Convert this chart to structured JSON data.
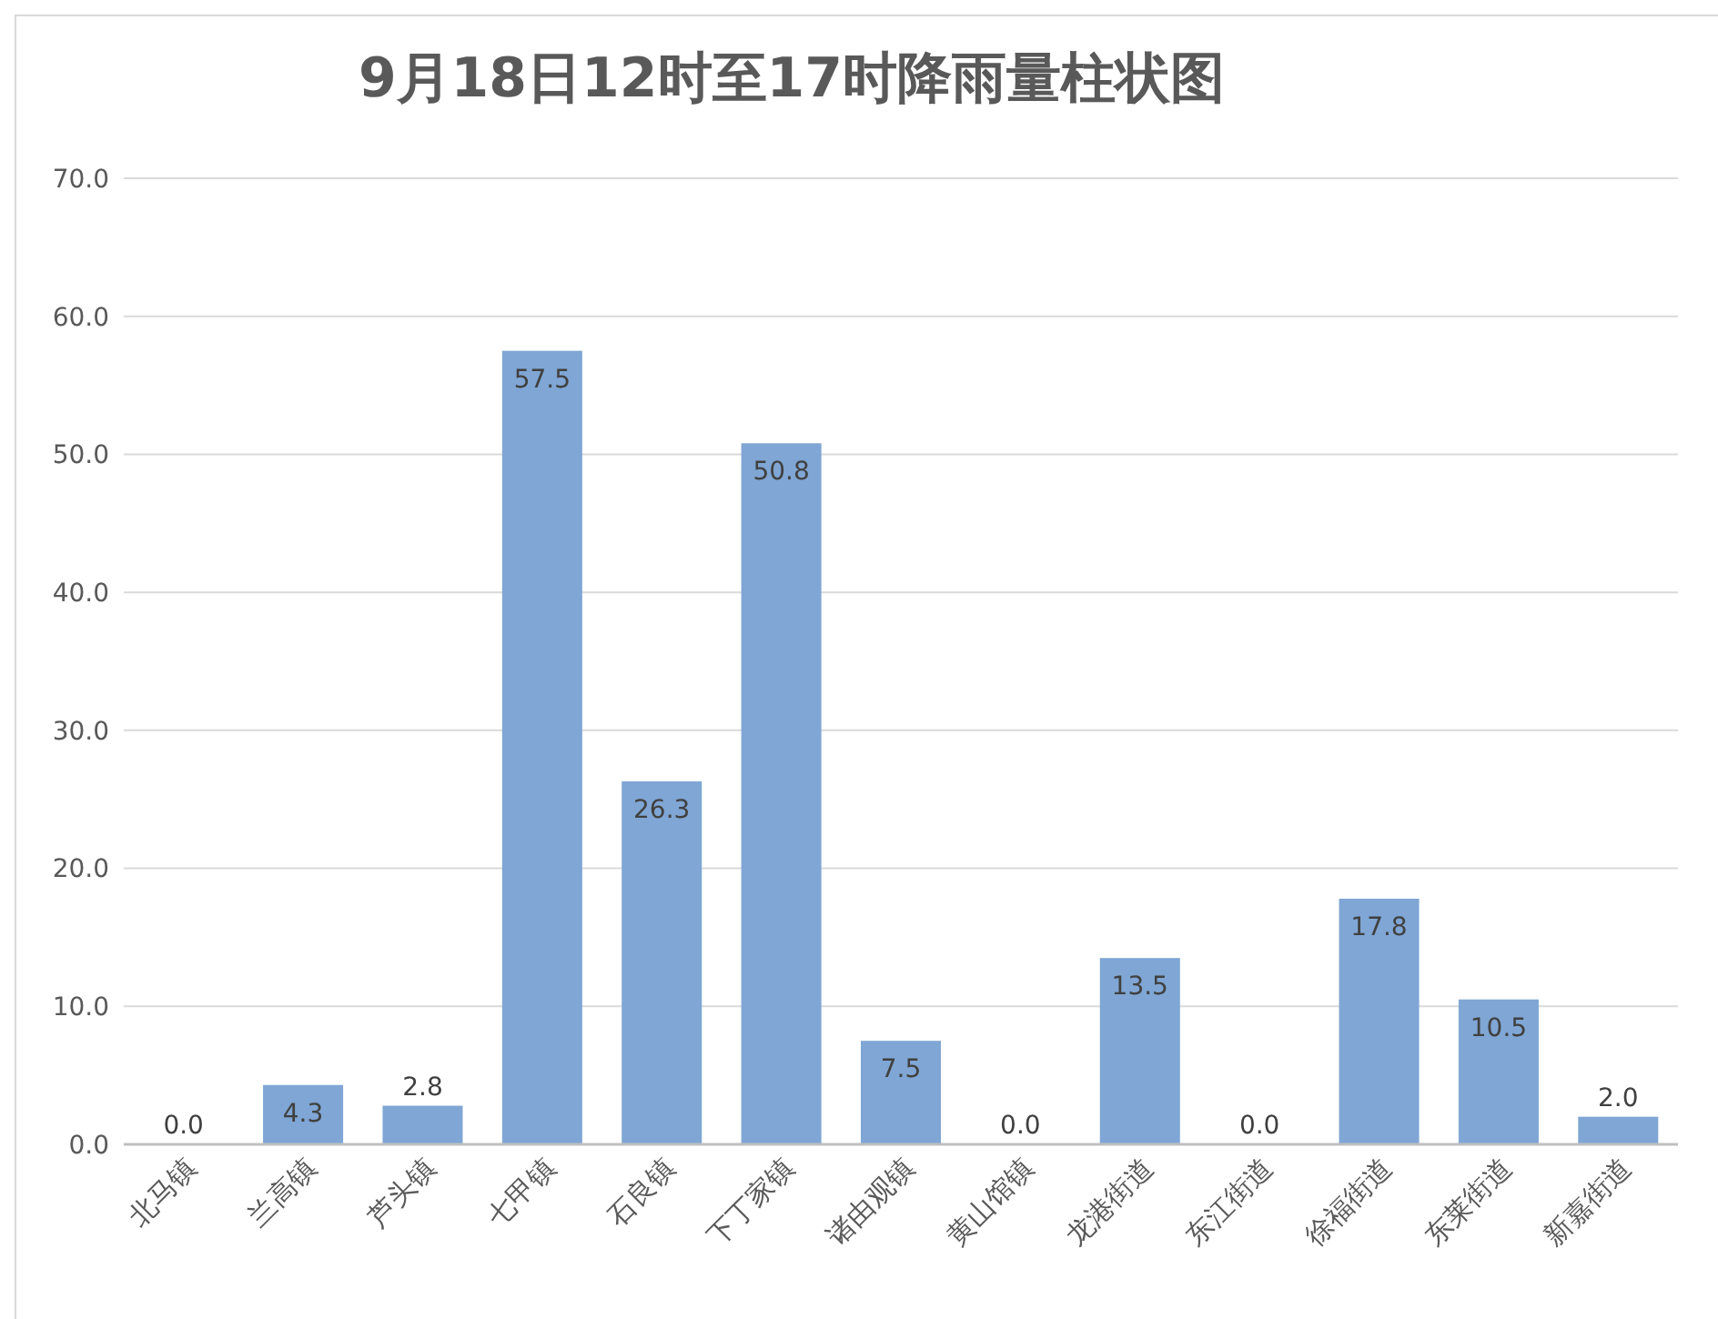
{
  "chart_data": {
    "type": "bar",
    "title": "9月18日12时至17时降雨量柱状图",
    "categories": [
      "北马镇",
      "兰高镇",
      "芦头镇",
      "七甲镇",
      "石良镇",
      "下丁家镇",
      "诸由观镇",
      "黄山馆镇",
      "龙港街道",
      "东江街道",
      "徐福街道",
      "东莱街道",
      "新嘉街道"
    ],
    "values": [
      0.0,
      4.3,
      2.8,
      57.5,
      26.3,
      50.8,
      7.5,
      0.0,
      13.5,
      0.0,
      17.8,
      10.5,
      2.0
    ],
    "value_labels": [
      "0.0",
      "4.3",
      "2.8",
      "57.5",
      "26.3",
      "50.8",
      "7.5",
      "0.0",
      "13.5",
      "0.0",
      "17.8",
      "10.5",
      "2.0"
    ],
    "color": "#7fa6d4",
    "ylim": [
      0,
      70
    ],
    "yticks": [
      {
        "value": 0,
        "label": "0.0"
      },
      {
        "value": 10,
        "label": "10.0"
      },
      {
        "value": 20,
        "label": "20.0"
      },
      {
        "value": 30,
        "label": "30.0"
      },
      {
        "value": 40,
        "label": "40.0"
      },
      {
        "value": 50,
        "label": "50.0"
      },
      {
        "value": 60,
        "label": "60.0"
      },
      {
        "value": 70,
        "label": "70.0"
      }
    ],
    "grid": "y"
  }
}
